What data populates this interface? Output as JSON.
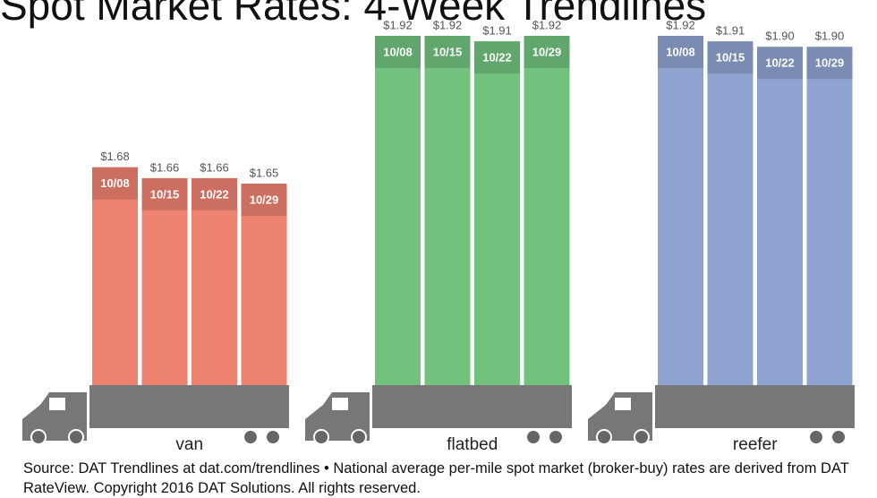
{
  "chart_data": {
    "type": "bar",
    "title": "Spot Market Rates: 4-Week Trendlines",
    "categories": [
      "10/08",
      "10/15",
      "10/22",
      "10/29"
    ],
    "series": [
      {
        "name": "van",
        "color": "#ee8270",
        "values": [
          1.68,
          1.66,
          1.66,
          1.65
        ],
        "value_labels": [
          "$1.68",
          "$1.66",
          "$1.66",
          "$1.65"
        ]
      },
      {
        "name": "flatbed",
        "color": "#72c27e",
        "values": [
          1.92,
          1.92,
          1.91,
          1.92
        ],
        "value_labels": [
          "$1.92",
          "$1.92",
          "$1.91",
          "$1.92"
        ]
      },
      {
        "name": "reefer",
        "color": "#8ea3d0",
        "values": [
          1.92,
          1.91,
          1.9,
          1.9
        ],
        "value_labels": [
          "$1.92",
          "$1.91",
          "$1.90",
          "$1.90"
        ]
      }
    ],
    "source": "Source: DAT Trendlines at dat.com/trendlines • National average per-mile spot market (broker-buy) rates are derived from DAT RateView. Copyright 2016 DAT Solutions. All rights reserved."
  }
}
